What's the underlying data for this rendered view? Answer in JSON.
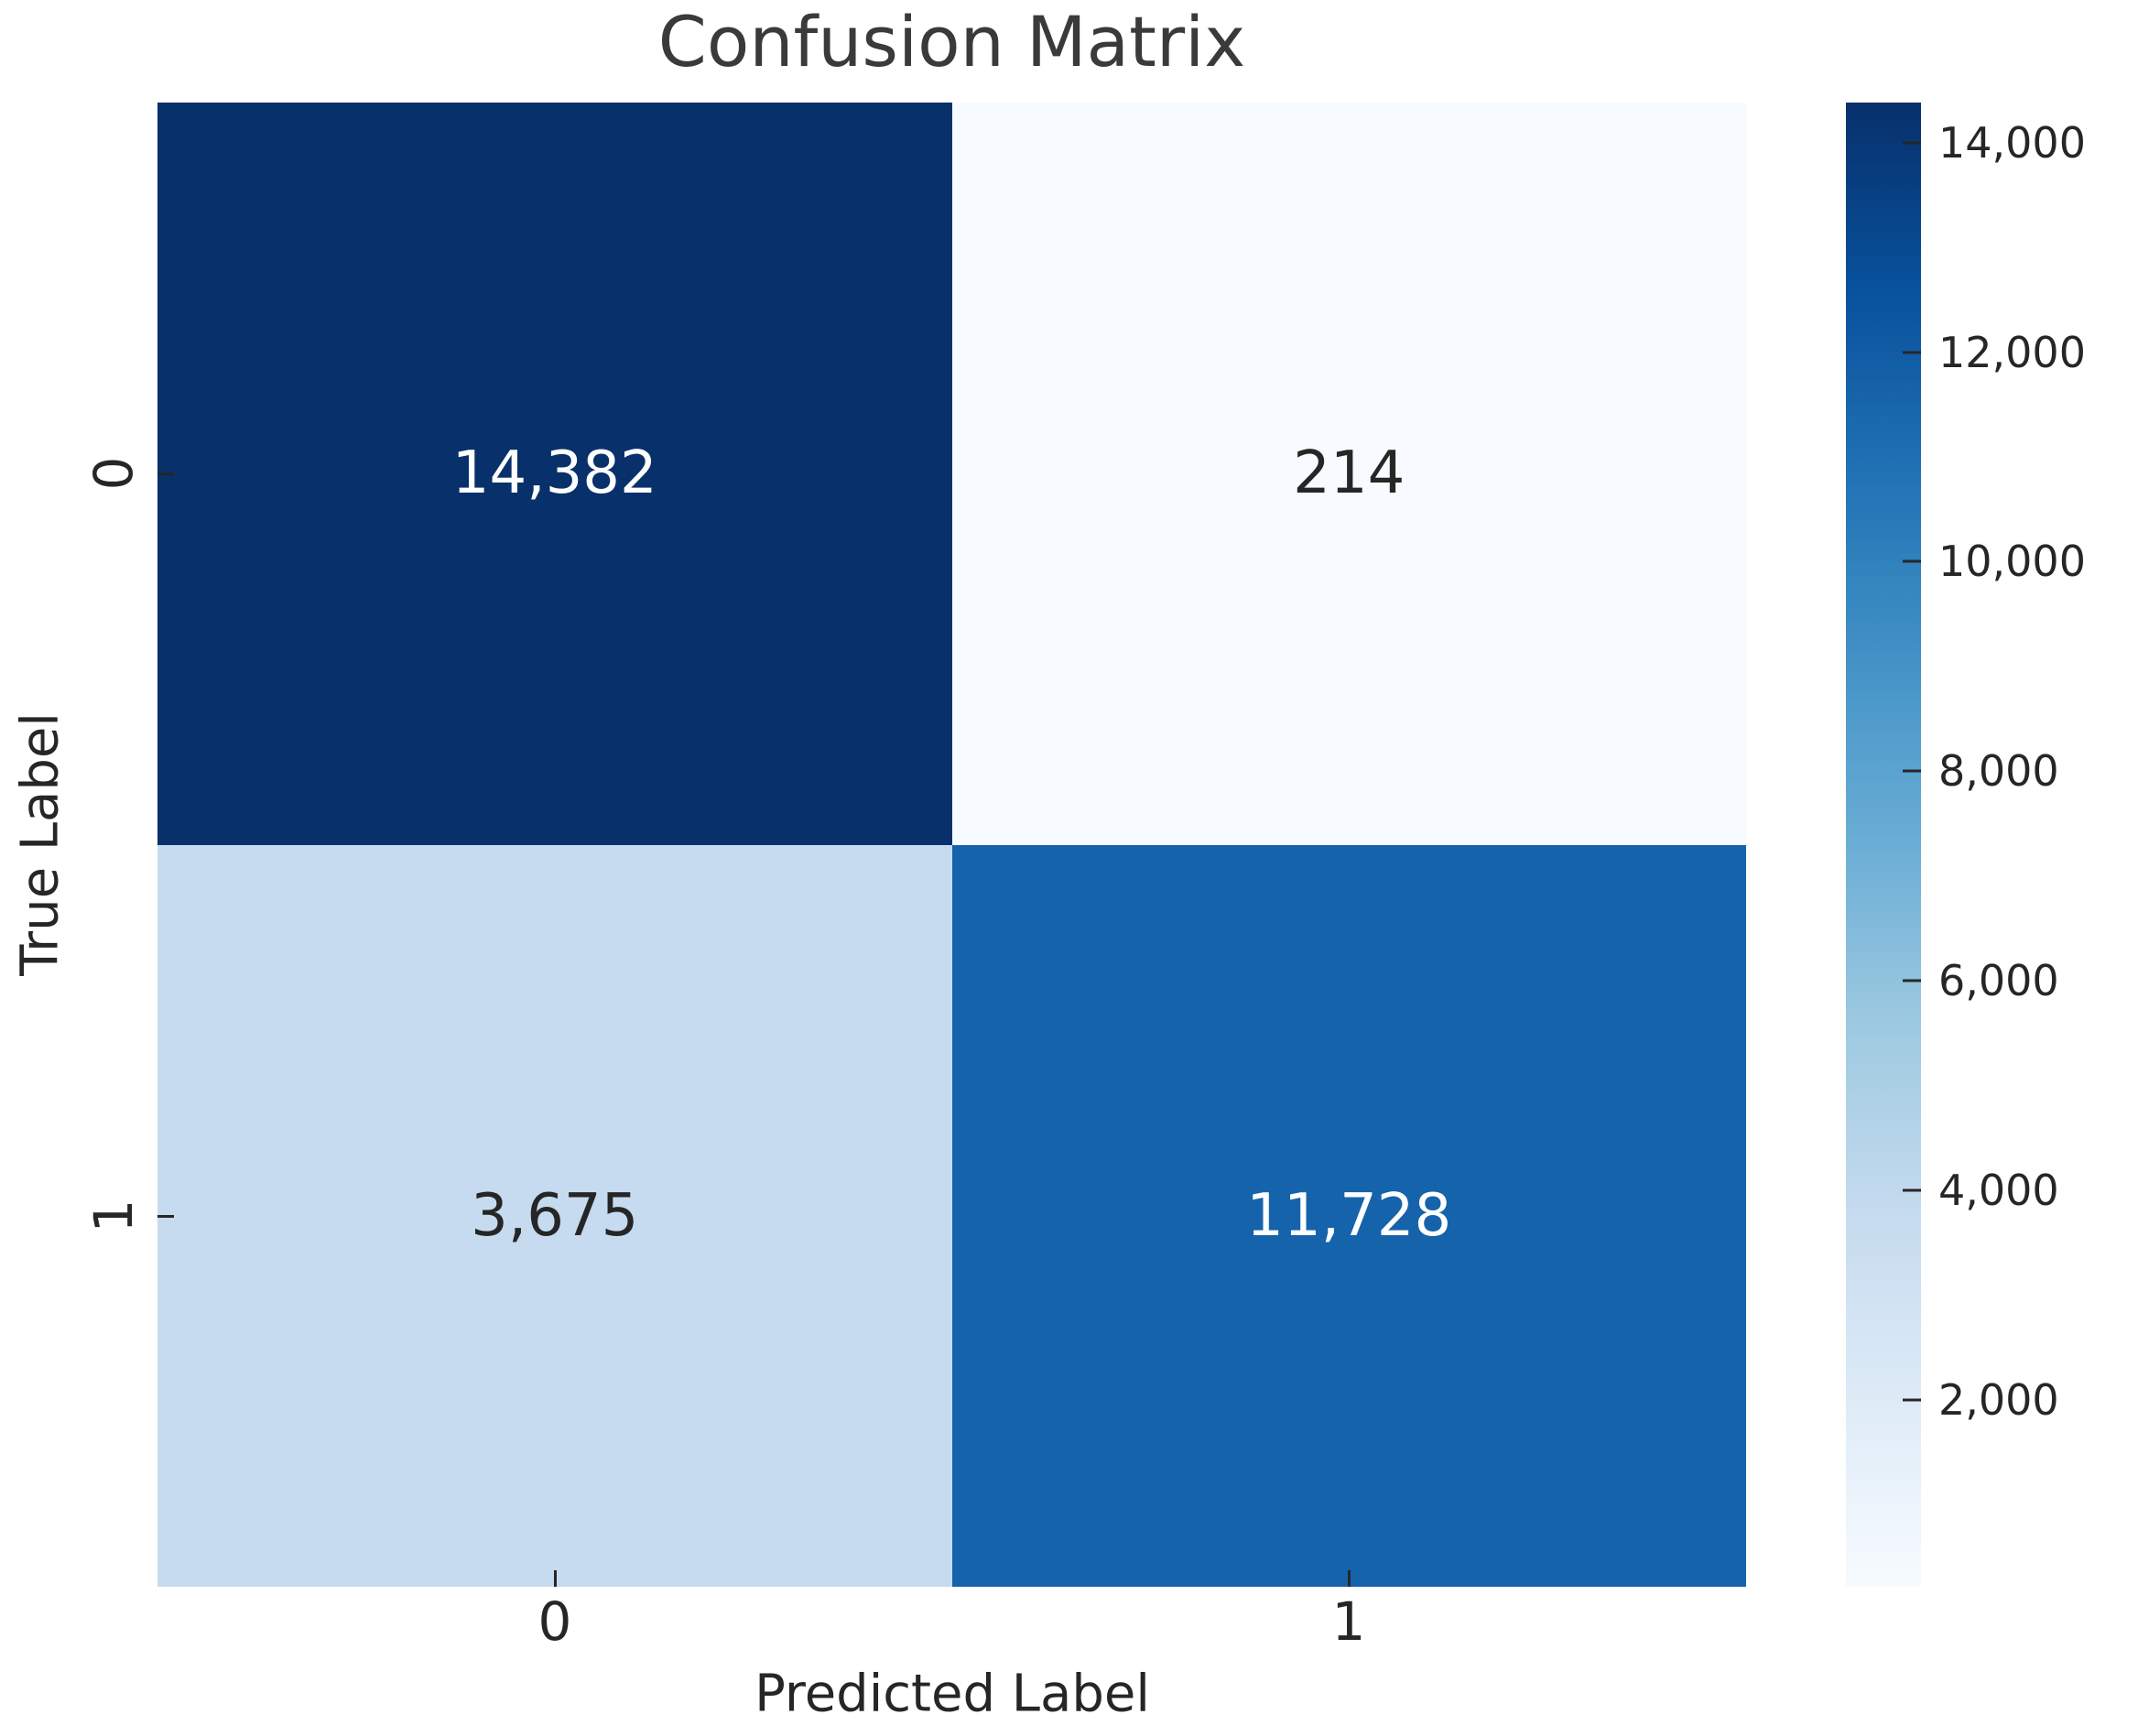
{
  "chart_data": {
    "type": "heatmap",
    "title": "Confusion Matrix",
    "xlabel": "Predicted Label",
    "ylabel": "True Label",
    "x_tick_labels": [
      "0",
      "1"
    ],
    "y_tick_labels": [
      "0",
      "1"
    ],
    "matrix": [
      [
        14382,
        214
      ],
      [
        3675,
        11728
      ]
    ],
    "cell_labels": [
      [
        "14,382",
        "214"
      ],
      [
        "3,675",
        "11,728"
      ]
    ],
    "cell_colors": [
      [
        "#08306b",
        "#f7fbff"
      ],
      [
        "#c6dbef",
        "#1563aa"
      ]
    ],
    "cell_text_colors": [
      [
        "#ffffff",
        "#262626"
      ],
      [
        "#262626",
        "#ffffff"
      ]
    ],
    "colormap": "Blues",
    "vmin": 214,
    "vmax": 14382,
    "colorbar_ticks": [
      14000,
      12000,
      10000,
      8000,
      6000,
      4000,
      2000
    ],
    "colorbar_tick_labels": [
      "14,000",
      "12,000",
      "10,000",
      "8,000",
      "6,000",
      "4,000",
      "2,000"
    ],
    "legend_position": "right-colorbar",
    "grid": false
  },
  "colors": {
    "max_cell": "#08306b",
    "min_cell": "#f7fbff",
    "text_dark": "#262626",
    "background": "#ffffff"
  }
}
